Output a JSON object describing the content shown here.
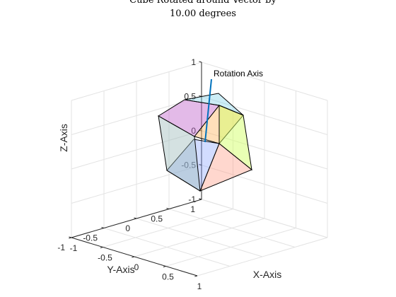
{
  "chart_data": {
    "type": "3d-surface",
    "title": "Cube Rotated around Vector by",
    "subtitle": "10.00 degrees",
    "xlabel": "X-Axis",
    "ylabel": "Y-Axis",
    "zlabel": "Z-Axis",
    "xlim": [
      -1,
      1
    ],
    "ylim": [
      -1,
      1
    ],
    "zlim": [
      -1,
      1
    ],
    "grid": true,
    "x_ticks": [
      {
        "value": -1,
        "label": "-1"
      },
      {
        "value": -0.5,
        "label": "-0.5"
      },
      {
        "value": 0,
        "label": "0"
      },
      {
        "value": 0.5,
        "label": "0.5"
      },
      {
        "value": 1,
        "label": "1"
      }
    ],
    "y_ticks": [
      {
        "value": -1,
        "label": "-1"
      },
      {
        "value": -0.5,
        "label": "-0.5"
      },
      {
        "value": 0,
        "label": "0"
      },
      {
        "value": 0.5,
        "label": "0.5"
      },
      {
        "value": 1,
        "label": "1"
      }
    ],
    "z_ticks": [
      {
        "value": -1,
        "label": "-1"
      },
      {
        "value": -0.5,
        "label": "-0.5"
      },
      {
        "value": 0,
        "label": "0"
      },
      {
        "value": 0.5,
        "label": "0.5"
      },
      {
        "value": 1,
        "label": "1"
      }
    ],
    "cube": {
      "center": [
        0,
        0,
        0
      ],
      "half_size": 0.5,
      "rotation_angle_deg": 10,
      "rotation_axis": [
        0.8,
        -0.5,
        0.4
      ],
      "faces": [
        {
          "name": "bottom",
          "color": "#7f9cff",
          "alpha": 0.35
        },
        {
          "name": "top",
          "color": "#c266cc",
          "alpha": 0.45
        },
        {
          "name": "left",
          "color": "#9fbdbd",
          "alpha": 0.45
        },
        {
          "name": "back",
          "color": "#7fd2e8",
          "alpha": 0.4
        },
        {
          "name": "front",
          "color": "#ffb766",
          "alpha": 0.45
        },
        {
          "name": "right",
          "color": "#d4ff6a",
          "alpha": 0.5
        },
        {
          "name": "floor",
          "color": "#ff9a85",
          "alpha": 0.4
        }
      ]
    },
    "rotation_axis_line": {
      "start": [
        0,
        0,
        -0.25
      ],
      "end": [
        0.05,
        0,
        0.95
      ],
      "color": "#0072bd",
      "label": "Rotation Axis"
    }
  }
}
